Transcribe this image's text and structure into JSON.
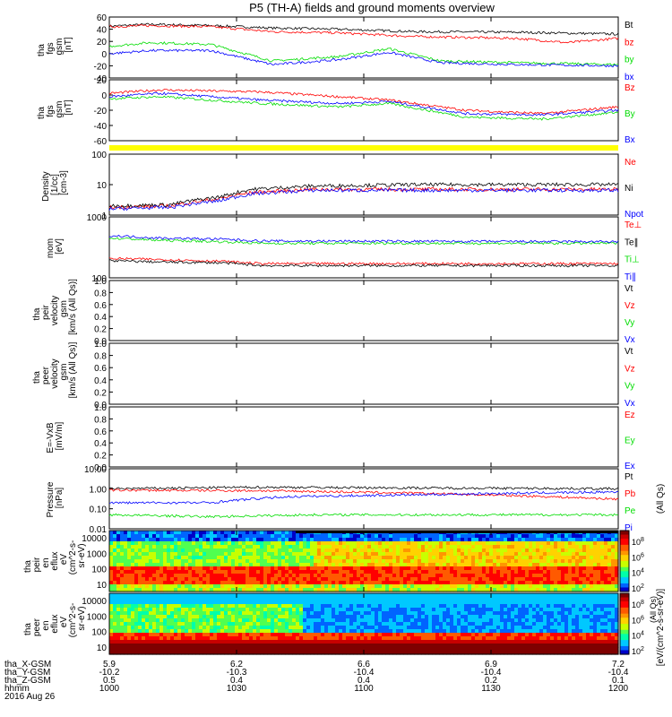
{
  "title": "P5 (TH-A) fields and ground moments overview",
  "colors": {
    "black": "#000000",
    "red": "#ff0000",
    "green": "#00dd00",
    "blue": "#0000ff",
    "yellow": "#ffff00"
  },
  "chart_data": {
    "type": "line",
    "time_axis": {
      "ticks": [
        "1000",
        "1030",
        "1100",
        "1130",
        "1200"
      ],
      "rows": [
        {
          "label": "tha_X-GSM",
          "values": [
            "5.9",
            "6.2",
            "6.6",
            "6.9",
            "7.2"
          ]
        },
        {
          "label": "tha_Y-GSM",
          "values": [
            "-10.2",
            "-10.3",
            "-10.4",
            "-10.4",
            "-10.4"
          ]
        },
        {
          "label": "tha_Z-GSM",
          "values": [
            "0.5",
            "0.4",
            "0.4",
            "0.2",
            "0.1"
          ]
        },
        {
          "label": "hhmm",
          "values": [
            "1000",
            "1030",
            "1100",
            "1130",
            "1200"
          ]
        }
      ],
      "date": "2016 Aug 26"
    },
    "panels": [
      {
        "ylabel": [
          "tha",
          "fgs",
          "gsm",
          "[nT]"
        ],
        "scale": "linear",
        "ylim": [
          -40,
          60
        ],
        "ticks": [
          "60",
          "40",
          "20",
          "0",
          "-20",
          "-40"
        ],
        "series": [
          {
            "name": "Bt",
            "color": "black",
            "points": [
              [
                0,
                45
              ],
              [
                0.08,
                48
              ],
              [
                0.2,
                46
              ],
              [
                0.32,
                42
              ],
              [
                0.45,
                40
              ],
              [
                0.6,
                36
              ],
              [
                0.8,
                35
              ],
              [
                1.0,
                32
              ]
            ]
          },
          {
            "name": "bz",
            "color": "red",
            "points": [
              [
                0,
                44
              ],
              [
                0.08,
                46
              ],
              [
                0.2,
                44
              ],
              [
                0.32,
                36
              ],
              [
                0.45,
                34
              ],
              [
                0.6,
                28
              ],
              [
                0.8,
                25
              ],
              [
                0.9,
                18
              ],
              [
                1.0,
                25
              ]
            ]
          },
          {
            "name": "by",
            "color": "green",
            "points": [
              [
                0,
                12
              ],
              [
                0.08,
                18
              ],
              [
                0.2,
                15
              ],
              [
                0.32,
                -12
              ],
              [
                0.45,
                -5
              ],
              [
                0.55,
                8
              ],
              [
                0.65,
                -12
              ],
              [
                0.8,
                -15
              ],
              [
                1.0,
                -18
              ]
            ]
          },
          {
            "name": "bx",
            "color": "blue",
            "points": [
              [
                0,
                0
              ],
              [
                0.08,
                5
              ],
              [
                0.2,
                5
              ],
              [
                0.32,
                -18
              ],
              [
                0.45,
                -10
              ],
              [
                0.55,
                2
              ],
              [
                0.65,
                -15
              ],
              [
                0.8,
                -18
              ],
              [
                1.0,
                -20
              ]
            ]
          }
        ]
      },
      {
        "ylabel": [
          "tha",
          "fgs",
          "gsm",
          "[nT]"
        ],
        "scale": "linear",
        "ylim": [
          -70,
          20
        ],
        "ticks": [
          "20",
          "0",
          "-20",
          "-40",
          "-60"
        ],
        "series": [
          {
            "name": "Bz",
            "color": "red",
            "points": [
              [
                0,
                0
              ],
              [
                0.1,
                5
              ],
              [
                0.3,
                2
              ],
              [
                0.45,
                -5
              ],
              [
                0.55,
                -10
              ],
              [
                0.7,
                -25
              ],
              [
                0.85,
                -30
              ],
              [
                1.0,
                -20
              ]
            ]
          },
          {
            "name": "By",
            "color": "green",
            "points": [
              [
                0,
                -8
              ],
              [
                0.1,
                -5
              ],
              [
                0.3,
                -15
              ],
              [
                0.45,
                -20
              ],
              [
                0.55,
                -15
              ],
              [
                0.7,
                -35
              ],
              [
                0.85,
                -38
              ],
              [
                1.0,
                -28
              ]
            ]
          },
          {
            "name": "Bx",
            "color": "blue",
            "points": [
              [
                0,
                -5
              ],
              [
                0.1,
                0
              ],
              [
                0.3,
                -10
              ],
              [
                0.45,
                -15
              ],
              [
                0.55,
                -12
              ],
              [
                0.7,
                -30
              ],
              [
                0.85,
                -32
              ],
              [
                1.0,
                -25
              ]
            ]
          }
        ]
      },
      {
        "ylabel": [
          "Density",
          "[1/cc]",
          "[cm-3]"
        ],
        "scale": "log",
        "ylim": [
          1,
          100
        ],
        "ticks": [
          "100",
          "10",
          "1"
        ],
        "series": [
          {
            "name": "Ne",
            "color": "red",
            "points": [
              [
                0,
                1.8
              ],
              [
                0.12,
                2.0
              ],
              [
                0.22,
                3.5
              ],
              [
                0.28,
                5.5
              ],
              [
                0.4,
                7
              ],
              [
                1.0,
                7
              ]
            ]
          },
          {
            "name": "Ni",
            "color": "black",
            "points": [
              [
                0,
                2.0
              ],
              [
                0.12,
                2.2
              ],
              [
                0.22,
                4
              ],
              [
                0.28,
                7
              ],
              [
                0.4,
                9
              ],
              [
                0.6,
                10
              ],
              [
                1.0,
                10
              ]
            ]
          },
          {
            "name": "Npot",
            "color": "blue",
            "points": [
              [
                0,
                1.6
              ],
              [
                0.12,
                1.8
              ],
              [
                0.22,
                3
              ],
              [
                0.28,
                5
              ],
              [
                0.4,
                6.5
              ],
              [
                1.0,
                6.5
              ]
            ]
          }
        ]
      },
      {
        "ylabel": [
          "mom",
          "[eV]"
        ],
        "scale": "log",
        "ylim": [
          10,
          10000
        ],
        "ticks": [
          "1000",
          "100"
        ],
        "series": [
          {
            "name": "Te⊥",
            "color": "red",
            "points": [
              [
                0,
                90
              ],
              [
                0.1,
                80
              ],
              [
                0.22,
                65
              ],
              [
                0.3,
                50
              ],
              [
                1.0,
                50
              ]
            ]
          },
          {
            "name": "Te∥",
            "color": "black",
            "points": [
              [
                0,
                70
              ],
              [
                0.1,
                60
              ],
              [
                0.22,
                55
              ],
              [
                0.3,
                40
              ],
              [
                1.0,
                40
              ]
            ]
          },
          {
            "name": "Ti⊥",
            "color": "green",
            "points": [
              [
                0,
                900
              ],
              [
                0.1,
                700
              ],
              [
                0.22,
                600
              ],
              [
                0.3,
                500
              ],
              [
                1.0,
                500
              ]
            ]
          },
          {
            "name": "Ti∥",
            "color": "blue",
            "points": [
              [
                0,
                1200
              ],
              [
                0.1,
                900
              ],
              [
                0.22,
                800
              ],
              [
                0.3,
                650
              ],
              [
                1.0,
                600
              ]
            ]
          }
        ]
      },
      {
        "ylabel": [
          "tha",
          "peir",
          "velocity",
          "gsm",
          "[km/s (All Qs)]"
        ],
        "scale": "linear",
        "ylim": [
          0,
          1
        ],
        "ticks": [
          "1.0",
          "0.8",
          "0.6",
          "0.4",
          "0.2",
          "0.0"
        ],
        "legend": [
          {
            "name": "Vt",
            "color": "black"
          },
          {
            "name": "Vz",
            "color": "red"
          },
          {
            "name": "Vy",
            "color": "green"
          },
          {
            "name": "Vx",
            "color": "blue"
          }
        ],
        "series": []
      },
      {
        "ylabel": [
          "tha",
          "peer",
          "velocity",
          "gsm",
          "[km/s (All Qs)]"
        ],
        "scale": "linear",
        "ylim": [
          0,
          1
        ],
        "ticks": [
          "1.0",
          "0.8",
          "0.6",
          "0.4",
          "0.2",
          "0.0"
        ],
        "legend": [
          {
            "name": "Vt",
            "color": "black"
          },
          {
            "name": "Vz",
            "color": "red"
          },
          {
            "name": "Vy",
            "color": "green"
          },
          {
            "name": "Vx",
            "color": "blue"
          }
        ],
        "series": []
      },
      {
        "ylabel": [
          "E=-VxB",
          "[mV/m]"
        ],
        "scale": "linear",
        "ylim": [
          0,
          1
        ],
        "ticks": [
          "1.0",
          "0.8",
          "0.6",
          "0.4",
          "0.2",
          "0.0"
        ],
        "legend": [
          {
            "name": "Ez",
            "color": "red"
          },
          {
            "name": "Ey",
            "color": "green"
          },
          {
            "name": "Ex",
            "color": "blue"
          }
        ],
        "series": []
      },
      {
        "ylabel": [
          "Pressure",
          "[nPa]"
        ],
        "scale": "log",
        "ylim": [
          0.01,
          10
        ],
        "ticks": [
          "10.00",
          "1.00",
          "0.10",
          "0.01"
        ],
        "right_label": "(All Qs)",
        "series": [
          {
            "name": "Pt",
            "color": "black",
            "points": [
              [
                0,
                1.0
              ],
              [
                0.3,
                1.2
              ],
              [
                0.6,
                1.1
              ],
              [
                1.0,
                1.0
              ]
            ]
          },
          {
            "name": "Pb",
            "color": "red",
            "points": [
              [
                0,
                0.85
              ],
              [
                0.3,
                0.8
              ],
              [
                0.6,
                0.6
              ],
              [
                0.8,
                0.45
              ],
              [
                1.0,
                0.3
              ]
            ]
          },
          {
            "name": "Pe",
            "color": "green",
            "points": [
              [
                0,
                0.05
              ],
              [
                0.2,
                0.04
              ],
              [
                0.4,
                0.05
              ],
              [
                0.7,
                0.05
              ],
              [
                1.0,
                0.05
              ]
            ]
          },
          {
            "name": "Pi",
            "color": "blue",
            "points": [
              [
                0,
                0.2
              ],
              [
                0.2,
                0.2
              ],
              [
                0.35,
                0.4
              ],
              [
                0.6,
                0.5
              ],
              [
                0.8,
                0.6
              ],
              [
                1.0,
                0.7
              ]
            ]
          }
        ]
      }
    ],
    "spectrograms": [
      {
        "ylabel": [
          "tha",
          "peir",
          "en",
          "eflux",
          "eV",
          "(cm^2-s-",
          "sr-eV)"
        ],
        "ticks": [
          "10000",
          "1000",
          "100",
          "10"
        ]
      },
      {
        "ylabel": [
          "tha",
          "peer",
          "en",
          "eflux",
          "eV",
          "(cm^2-s-",
          "sr-eV)"
        ],
        "ticks": [
          "10000",
          "1000",
          "100",
          "10"
        ]
      }
    ],
    "colorbar": {
      "label": "[eV/(cm^2-s-sr-eV)]",
      "label_overlap": "(All Qs)",
      "top_ticks": [
        "10^8",
        "10^6",
        "10^4",
        "10^2"
      ],
      "bottom_ticks": [
        "10^8",
        "10^6",
        "10^4",
        "10^2"
      ]
    }
  }
}
